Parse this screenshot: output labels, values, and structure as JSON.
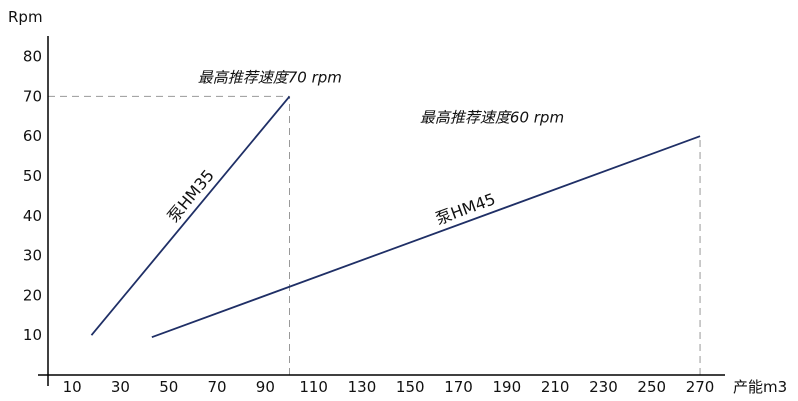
{
  "chart_data": {
    "type": "line",
    "ylabel": "Rpm",
    "xlabel": "产能m3",
    "xlim": [
      0,
      270
    ],
    "ylim": [
      0,
      85
    ],
    "x_ticks": [
      10,
      30,
      50,
      70,
      90,
      110,
      130,
      150,
      170,
      190,
      210,
      230,
      250,
      270
    ],
    "y_ticks": [
      10,
      20,
      30,
      40,
      50,
      60,
      70,
      80
    ],
    "grid": false,
    "series": [
      {
        "name": "泵HM35",
        "x": [
          18,
          100
        ],
        "y": [
          10,
          70
        ],
        "color": "#1f2f66"
      },
      {
        "name": "泵HM45",
        "x": [
          43,
          270
        ],
        "y": [
          9.5,
          60
        ],
        "color": "#1f2f66"
      }
    ],
    "reference_lines": [
      {
        "type": "horizontal",
        "y": 70,
        "x_from": 0,
        "x_to": 100
      },
      {
        "type": "vertical",
        "x": 100,
        "y_from": 0,
        "y_to": 70
      },
      {
        "type": "vertical",
        "x": 270,
        "y_from": 0,
        "y_to": 60
      }
    ],
    "annotations": [
      {
        "text": "最高推荐速度70 rpm",
        "x": 62,
        "y": 73.5
      },
      {
        "text": "最高推荐速度60 rpm",
        "x": 154,
        "y": 63.5
      }
    ],
    "axis_color": "#000000",
    "reference_line_color": "#999999"
  }
}
